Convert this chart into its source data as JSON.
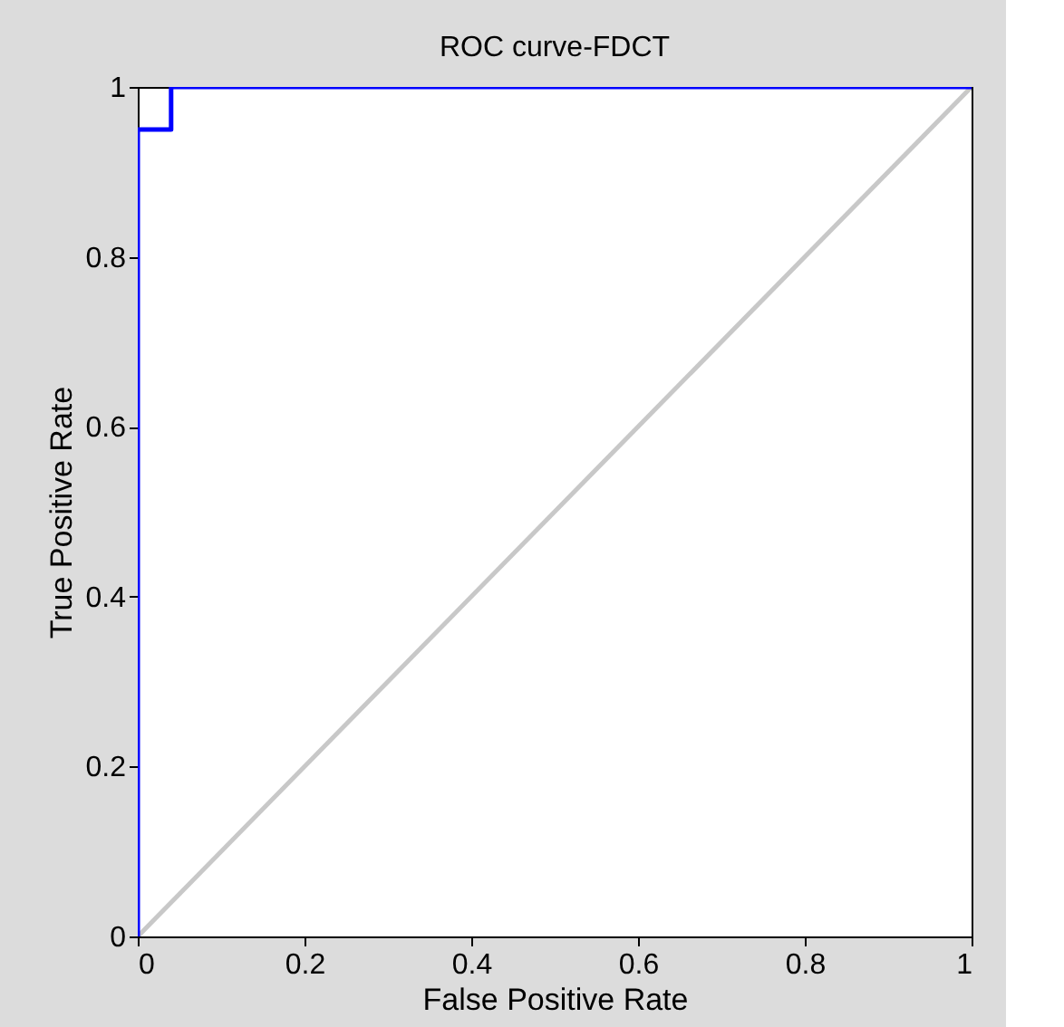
{
  "chart_data": {
    "type": "line",
    "title": "ROC curve-FDCT",
    "xlabel": "False Positive Rate",
    "ylabel": "True Positive Rate",
    "xlim": [
      0,
      1
    ],
    "ylim": [
      0,
      1
    ],
    "xticks": [
      0,
      0.2,
      0.4,
      0.6,
      0.8,
      1
    ],
    "yticks": [
      0,
      0.2,
      0.4,
      0.6,
      0.8,
      1
    ],
    "grid": false,
    "series": [
      {
        "color": "#c8c8c8",
        "x": [
          0,
          1
        ],
        "values": [
          0,
          1
        ]
      },
      {
        "color": "#0000ff",
        "x": [
          0,
          0,
          0.04,
          0.04,
          1
        ],
        "values": [
          0,
          0.95,
          0.95,
          1,
          1
        ]
      }
    ]
  }
}
